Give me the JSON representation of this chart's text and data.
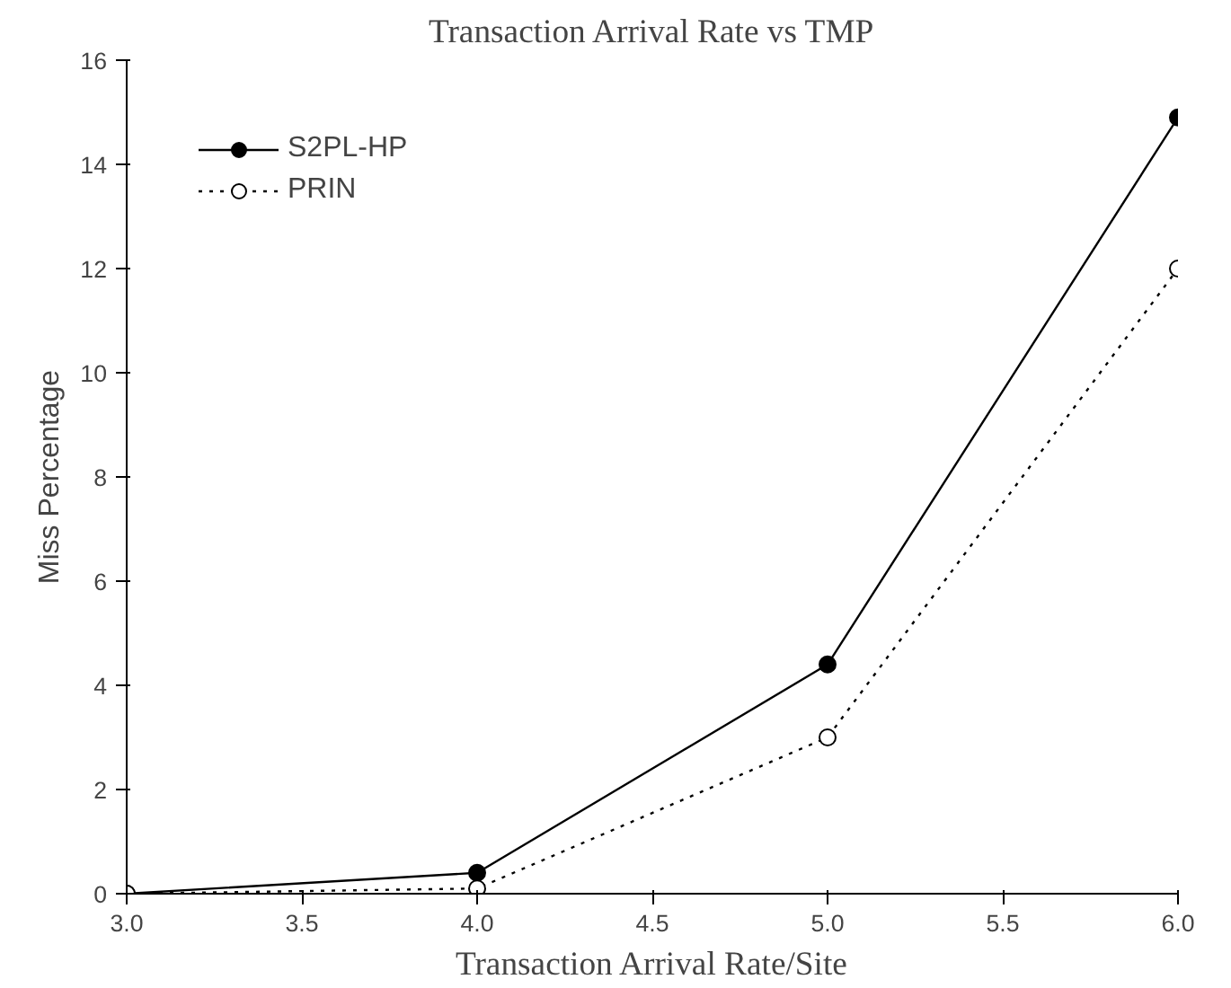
{
  "chart_data": {
    "type": "line",
    "title": "Transaction Arrival Rate vs TMP",
    "xlabel": "Transaction Arrival Rate/Site",
    "ylabel": "Miss Percentage",
    "x": [
      3.0,
      4.0,
      5.0,
      6.0
    ],
    "series": [
      {
        "name": "S2PL-HP",
        "color": "#000000",
        "values": [
          0,
          0.4,
          4.4,
          14.9
        ],
        "line_style": "solid"
      },
      {
        "name": "PRIN",
        "color": "#000000",
        "values": [
          0,
          0.1,
          3.0,
          12.0
        ],
        "line_style": "dotted"
      }
    ],
    "xlim": [
      3.0,
      6.0
    ],
    "ylim": [
      0,
      16
    ],
    "xticks": [
      {
        "value": 3,
        "label": "3.0"
      },
      {
        "value": 3.5,
        "label": "3.5"
      },
      {
        "value": 4,
        "label": "4.0"
      },
      {
        "value": 4.5,
        "label": "4.5"
      },
      {
        "value": 5,
        "label": "5.0"
      },
      {
        "value": 5.5,
        "label": "5.5"
      },
      {
        "value": 6,
        "label": "6.0"
      }
    ],
    "yticks": [
      0,
      2,
      4,
      6,
      8,
      10,
      12,
      14,
      16
    ],
    "grid": false,
    "legend": "top left",
    "marker": "circle"
  }
}
